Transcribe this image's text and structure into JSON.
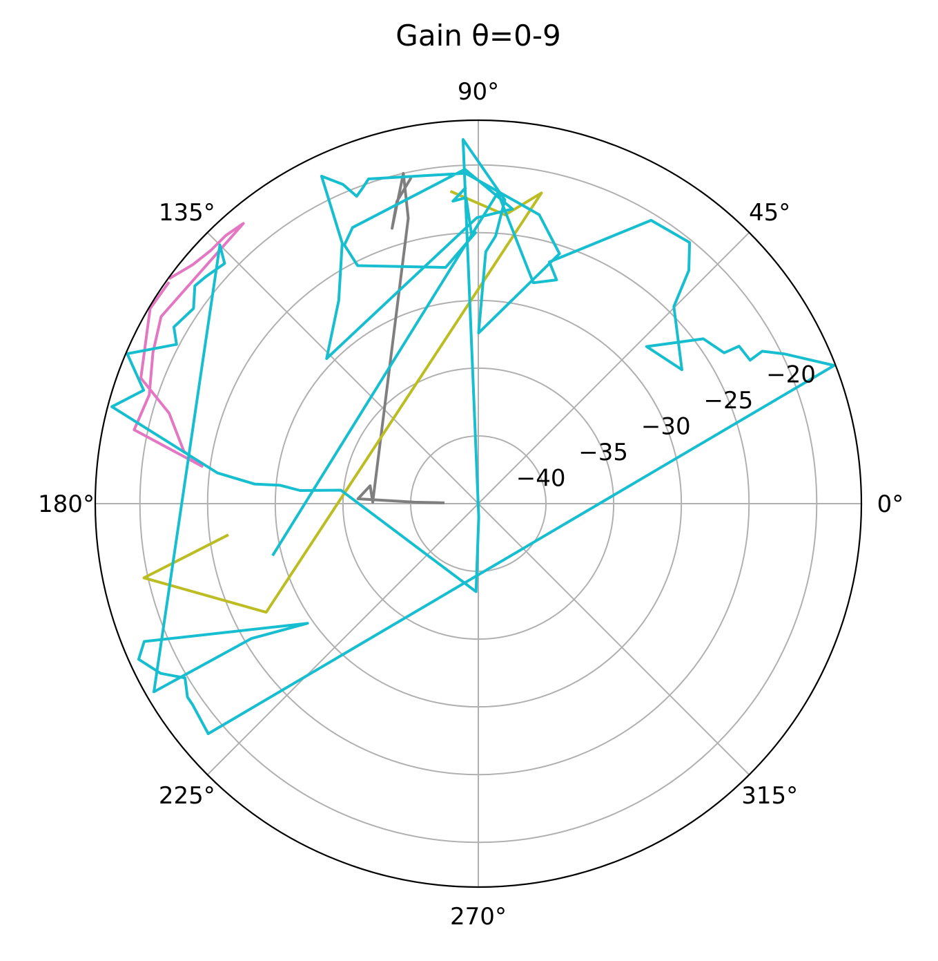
{
  "chart_data": {
    "type": "line",
    "projection": "polar",
    "title": "Gain θ=0-9",
    "theta_unit": "degrees",
    "theta_ticks": [
      {
        "deg": 0,
        "label": "0°"
      },
      {
        "deg": 45,
        "label": "45°"
      },
      {
        "deg": 90,
        "label": "90°"
      },
      {
        "deg": 135,
        "label": "135°"
      },
      {
        "deg": 180,
        "label": "180°"
      },
      {
        "deg": 225,
        "label": "225°"
      },
      {
        "deg": 270,
        "label": "270°"
      },
      {
        "deg": 315,
        "label": "315°"
      }
    ],
    "r_ticks": [
      {
        "value": -40,
        "label": "−40"
      },
      {
        "value": -35,
        "label": "−35"
      },
      {
        "value": -30,
        "label": "−30"
      },
      {
        "value": -25,
        "label": "−25"
      },
      {
        "value": -20,
        "label": "−20"
      }
    ],
    "r_label_angle_deg": 22.5,
    "rlim": [
      -45,
      -16.7
    ],
    "grid": true,
    "series": [
      {
        "color": "#e377c2",
        "points": [
          [
            143.8,
            -16.8
          ],
          [
            140.1,
            -17.5
          ],
          [
            136.6,
            -17.8
          ],
          [
            133.3,
            -17.8
          ],
          [
            130.0,
            -18.0
          ],
          [
            149.5,
            -17.8
          ],
          [
            155.1,
            -18.5
          ],
          [
            161.7,
            -19.4
          ],
          [
            167.9,
            -19.0
          ],
          [
            172.3,
            -24.4
          ],
          [
            169.9,
            -22.9
          ],
          [
            163.7,
            -21.2
          ],
          [
            159.6,
            -18.4
          ],
          [
            149.3,
            -16.8
          ],
          [
            144.6,
            -16.9
          ]
        ]
      },
      {
        "color": "#7f7f7f",
        "points": [
          [
            101.8,
            -20.5
          ],
          [
            105.1,
            -21.9
          ],
          [
            107.4,
            -23.7
          ],
          [
            102.8,
            -20.0
          ],
          [
            103.8,
            -23.3
          ],
          [
            179.2,
            -37.2
          ],
          [
            170.6,
            -36.9
          ],
          [
            177.7,
            -36.1
          ],
          [
            178.7,
            -40.3
          ],
          [
            178.6,
            -42.4
          ]
        ]
      },
      {
        "color": "#bcbd22",
        "points": [
          [
            94.9,
            -21.9
          ],
          [
            84.7,
            -23.6
          ],
          [
            78.5,
            -21.6
          ],
          [
            207.1,
            -27.4
          ],
          [
            192.5,
            -19.7
          ],
          [
            187.2,
            -26.3
          ]
        ]
      },
      {
        "color": "#17becf",
        "points": [
          [
            92.4,
            -21.7
          ],
          [
            94.8,
            -22.6
          ],
          [
            92.3,
            -22.4
          ],
          [
            91.4,
            -25.2
          ],
          [
            90.6,
            -25.0
          ],
          [
            97.9,
            -27.4
          ],
          [
            116.9,
            -25.3
          ],
          [
            117.4,
            -23.5
          ],
          [
            114.5,
            -22.6
          ],
          [
            92.3,
            -20.3
          ],
          [
            83.4,
            -23.1
          ],
          [
            90.3,
            -23.9
          ],
          [
            136.3,
            -29.5
          ],
          [
            124.5,
            -26.8
          ],
          [
            117.6,
            -23.3
          ],
          [
            115.6,
            -18.2
          ],
          [
            113.0,
            -19.4
          ],
          [
            111.6,
            -20.6
          ],
          [
            110.2,
            -20.2
          ],
          [
            108.7,
            -19.7
          ],
          [
            92.2,
            -20.6
          ],
          [
            78.1,
            -23.2
          ],
          [
            72.0,
            -25.6
          ],
          [
            89.9,
            -32.4
          ],
          [
            88.3,
            -26.4
          ],
          [
            86.3,
            -25.2
          ],
          [
            85.0,
            -22.5
          ],
          [
            92.4,
            -18.1
          ],
          [
            271.7,
            -44.0
          ],
          [
            268.5,
            -38.5
          ],
          [
            174.4,
            -34.8
          ],
          [
            175.8,
            -31.8
          ],
          [
            174.7,
            -30.3
          ],
          [
            175.0,
            -28.4
          ],
          [
            173.3,
            -25.6
          ],
          [
            165.2,
            -17.0
          ],
          [
            161.3,
            -18.9
          ],
          [
            156.9,
            -16.8
          ],
          [
            152.2,
            -19.8
          ],
          [
            149.9,
            -19.0
          ],
          [
            145.6,
            -19.5
          ],
          [
            142.5,
            -18.6
          ],
          [
            140.3,
            -18.8
          ],
          [
            136.6,
            -19.2
          ],
          [
            135.0,
            -18.0
          ],
          [
            210.1,
            -17.3
          ],
          [
            210.7,
            -25.5
          ],
          [
            215.0,
            -29.6
          ],
          [
            202.4,
            -18.3
          ],
          [
            204.6,
            -17.4
          ],
          [
            208.1,
            -18.4
          ],
          [
            210.7,
            -19.8
          ],
          [
            213.6,
            -19.2
          ],
          [
            215.1,
            -19.2
          ],
          [
            220.4,
            -18.8
          ],
          [
            21.2,
            -16.8
          ],
          [
            26.0,
            -19.8
          ],
          [
            28.2,
            -21.2
          ],
          [
            27.8,
            -22.3
          ],
          [
            31.1,
            -22.5
          ],
          [
            31.5,
            -23.7
          ],
          [
            36.2,
            -24.4
          ],
          [
            43.0,
            -28.0
          ],
          [
            33.3,
            -27.0
          ],
          [
            45.2,
            -24.5
          ],
          [
            47.9,
            -21.8
          ],
          [
            51.0,
            -20.2
          ],
          [
            58.6,
            -20.5
          ],
          [
            73.6,
            -26.4
          ],
          [
            70.7,
            -27.5
          ],
          [
            76.0,
            -28.2
          ],
          [
            86.4,
            -22.0
          ],
          [
            193.9,
            -29.4
          ]
        ]
      }
    ]
  }
}
